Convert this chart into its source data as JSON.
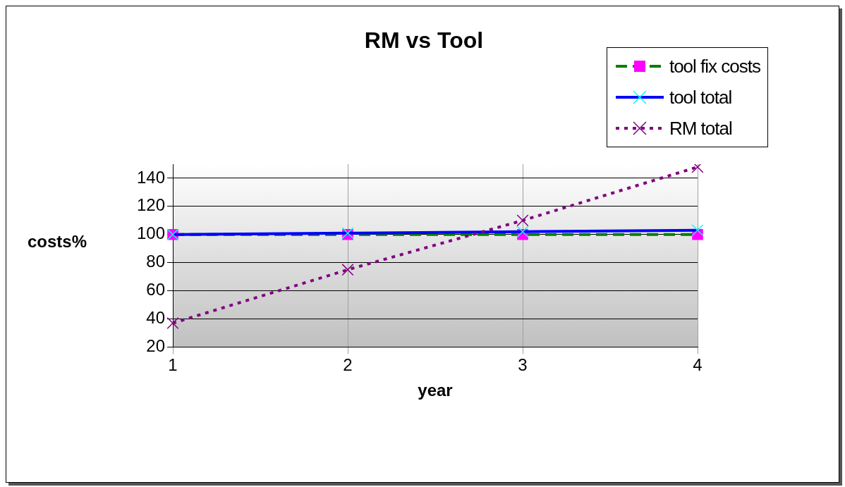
{
  "chart_data": {
    "type": "line",
    "title": "RM vs Tool",
    "xlabel": "year",
    "ylabel": "costs%",
    "categories": [
      "1",
      "2",
      "3",
      "4"
    ],
    "series": [
      {
        "name": "tool fix costs",
        "color": "#008000",
        "colors": [
          "#ff00ff",
          "#ff00ff",
          "#ff00ff",
          "#ff00ff"
        ],
        "marker": "square",
        "line_style": "dashed",
        "values": [
          100,
          100,
          100,
          100
        ]
      },
      {
        "name": "tool total",
        "color": "#0000ff",
        "colors": [
          "#00ffff",
          "#00ffff",
          "#00ffff",
          "#00ffff"
        ],
        "marker": "cross",
        "line_style": "solid",
        "values": [
          100,
          101,
          102,
          103
        ]
      },
      {
        "name": "RM total",
        "color": "#800080",
        "colors": [
          "#800080",
          "#800080",
          "#800080",
          "#800080"
        ],
        "marker": "cross",
        "line_style": "dotted",
        "values": [
          37,
          75,
          110,
          148
        ]
      }
    ],
    "ylim": [
      20,
      150
    ],
    "yticks": [
      20,
      40,
      60,
      80,
      100,
      120,
      140
    ],
    "grid": true,
    "legend": "top right"
  }
}
